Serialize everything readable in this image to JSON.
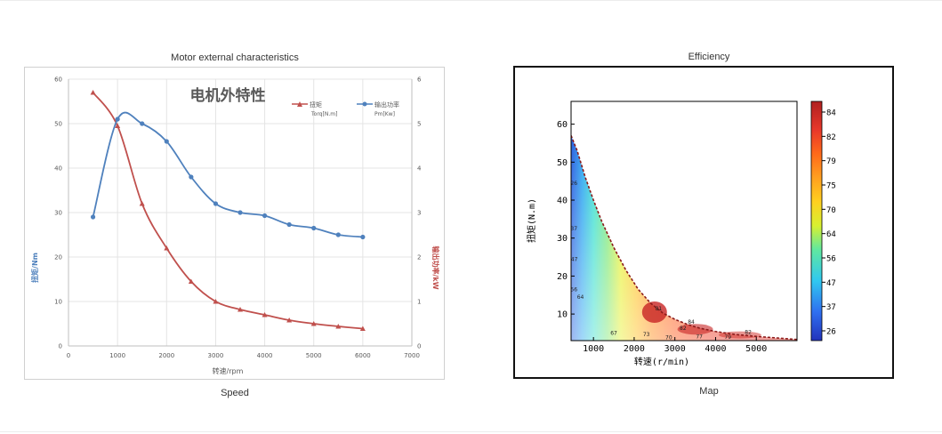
{
  "captions": {
    "left_top": "Motor external characteristics",
    "left_bottom": "Speed",
    "right_top": "Efficiency",
    "right_bottom": "Map"
  },
  "chart_data": [
    {
      "type": "line",
      "title": "电机外特性",
      "xlabel": "转速/rpm",
      "ylabel_left": "扭矩/Nm",
      "ylabel_right": "输出功率/kW",
      "xlim": [
        0,
        7000
      ],
      "x_ticks": [
        0,
        1000,
        2000,
        3000,
        4000,
        5000,
        6000,
        7000
      ],
      "ylim_left": [
        0,
        60
      ],
      "y_ticks_left": [
        0,
        10,
        20,
        30,
        40,
        50,
        60
      ],
      "ylim_right": [
        0,
        6
      ],
      "y_ticks_right": [
        0,
        1,
        2,
        3,
        4,
        5,
        6
      ],
      "legend_position": "top-right",
      "series": [
        {
          "name": "扭矩",
          "sublabel": "Torq[N.m]",
          "axis": "left",
          "color": "#c0504d",
          "marker": "triangle",
          "x": [
            500,
            1000,
            1500,
            2000,
            2500,
            3000,
            3500,
            4000,
            4500,
            5000,
            5500,
            6000
          ],
          "y": [
            57,
            49.5,
            32,
            22,
            14.5,
            10,
            8.2,
            7,
            5.8,
            5,
            4.4,
            3.9
          ]
        },
        {
          "name": "输出功率",
          "sublabel": "Pm[Kw]",
          "axis": "right",
          "color": "#4f81bd",
          "marker": "circle",
          "x": [
            500,
            1000,
            1500,
            2000,
            2500,
            3000,
            3500,
            4000,
            4500,
            5000,
            5500,
            6000
          ],
          "y": [
            2.9,
            5.1,
            5.0,
            4.6,
            3.8,
            3.2,
            3.0,
            2.93,
            2.73,
            2.65,
            2.5,
            2.45
          ]
        }
      ]
    },
    {
      "type": "heatmap",
      "subtype": "contour",
      "xlabel": "转速(r/min)",
      "ylabel": "扭矩(N.m)",
      "x_ticks": [
        1000,
        2000,
        3000,
        4000,
        5000
      ],
      "xlim": [
        450,
        6000
      ],
      "y_ticks": [
        10,
        20,
        30,
        40,
        50,
        60
      ],
      "ylim": [
        3,
        66
      ],
      "colorbar_ticks": [
        84,
        82,
        79,
        75,
        70,
        64,
        56,
        47,
        37,
        26
      ],
      "boundary": {
        "x": [
          450,
          600,
          800,
          1000,
          1200,
          1500,
          1800,
          2100,
          2400,
          2700,
          3000,
          3300,
          3600,
          4000,
          4500,
          5000,
          5500,
          6000
        ],
        "y": [
          57,
          53,
          46,
          40,
          34.5,
          27.5,
          21.5,
          16.5,
          12.9,
          10.3,
          8.6,
          7.3,
          6.3,
          5.4,
          4.6,
          4.1,
          3.7,
          3.3
        ]
      },
      "contour_labels": [
        {
          "text": "64",
          "x": 680,
          "y": 14
        },
        {
          "text": "47",
          "x": 530,
          "y": 24
        },
        {
          "text": "56",
          "x": 520,
          "y": 16
        },
        {
          "text": "37",
          "x": 520,
          "y": 32
        },
        {
          "text": "26",
          "x": 520,
          "y": 44
        },
        {
          "text": "67",
          "x": 1500,
          "y": 4.5
        },
        {
          "text": "73",
          "x": 2300,
          "y": 4.2
        },
        {
          "text": "70",
          "x": 2850,
          "y": 3.4
        },
        {
          "text": "81",
          "x": 2600,
          "y": 11
        },
        {
          "text": "82",
          "x": 3200,
          "y": 5.8
        },
        {
          "text": "84",
          "x": 3400,
          "y": 7.5
        },
        {
          "text": "77",
          "x": 3600,
          "y": 3.6
        },
        {
          "text": "79",
          "x": 4300,
          "y": 3.5
        },
        {
          "text": "82",
          "x": 4800,
          "y": 4.7
        }
      ]
    }
  ]
}
